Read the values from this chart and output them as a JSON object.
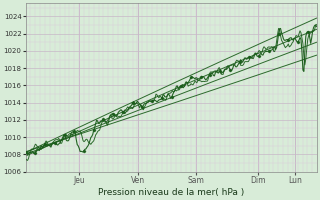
{
  "bg_color": "#d8ecd8",
  "grid_major_color": "#c8b8c8",
  "grid_minor_color": "#dccadc",
  "line_color": "#1a5c1a",
  "xlabel": "Pression niveau de la mer( hPa )",
  "ylim": [
    1006,
    1025.5
  ],
  "yticks": [
    1008,
    1010,
    1012,
    1014,
    1016,
    1018,
    1020,
    1022,
    1024
  ],
  "day_labels": [
    "Jeu",
    "Ven",
    "Sam",
    "Dim",
    "Lun"
  ],
  "day_positions": [
    0.185,
    0.385,
    0.585,
    0.8,
    0.925
  ],
  "xlim": [
    0,
    1.0
  ],
  "n_points": 300
}
